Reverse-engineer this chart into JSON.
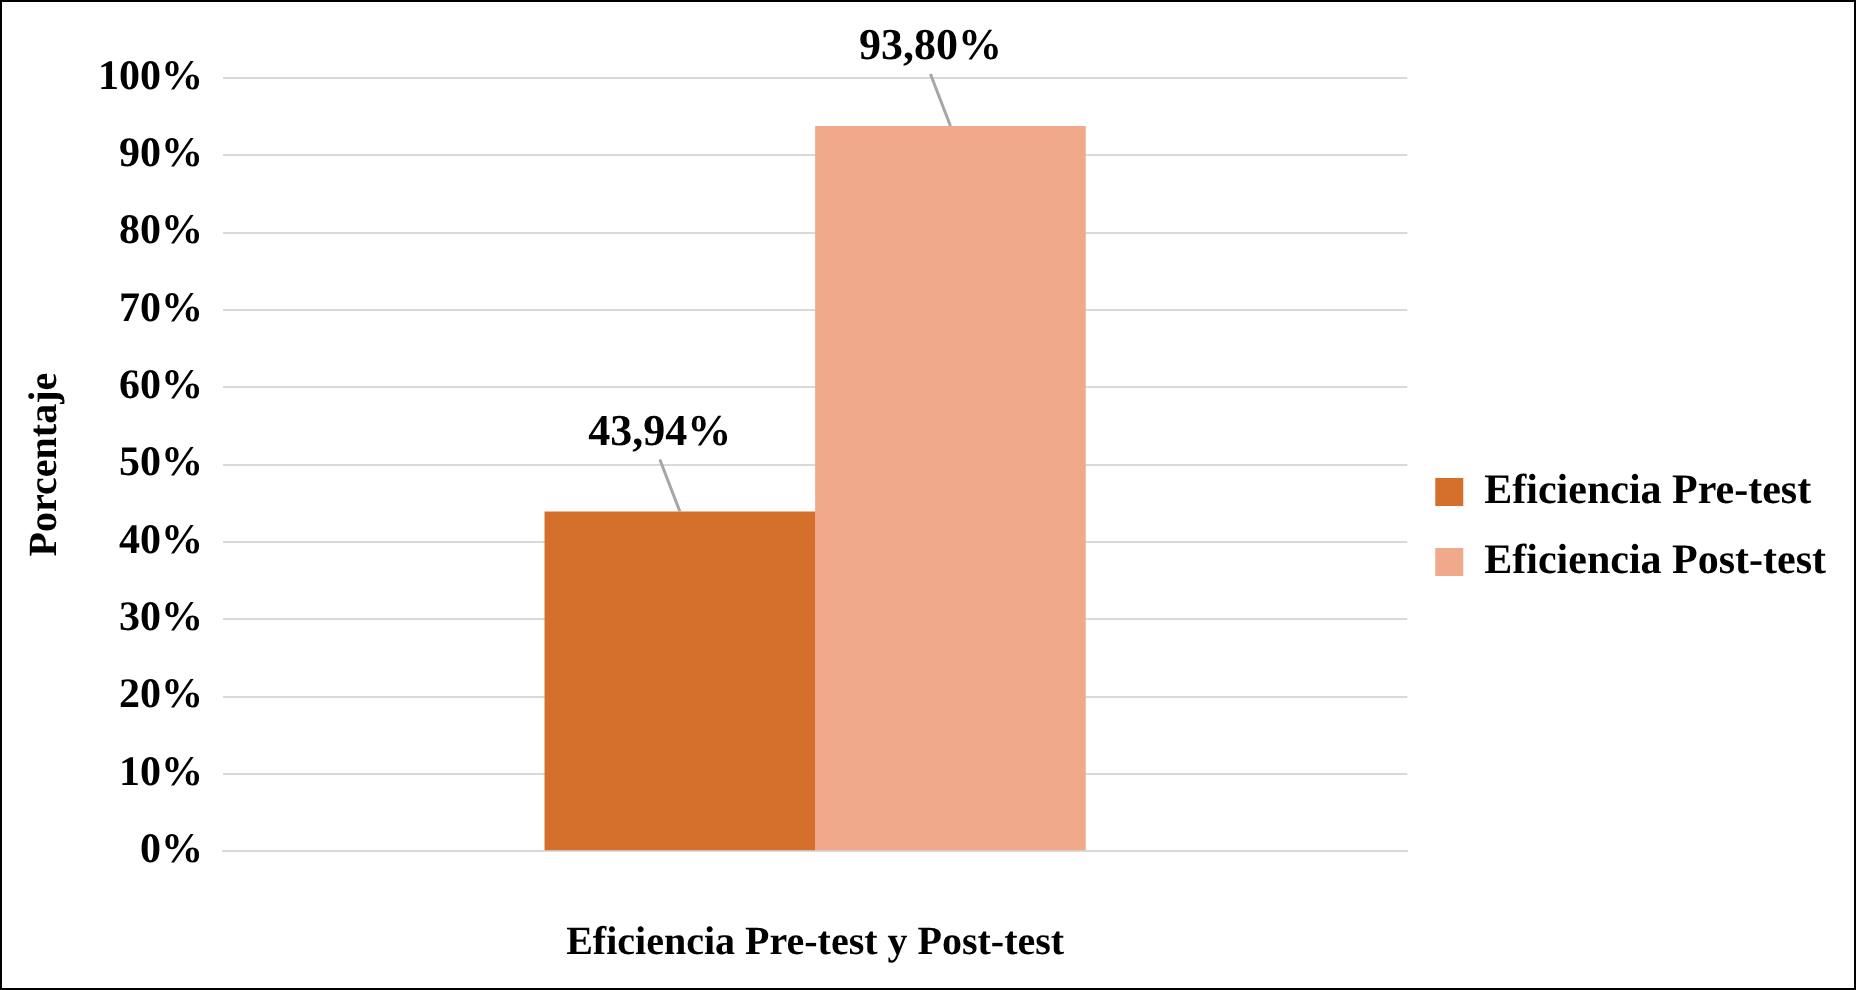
{
  "chart_data": {
    "type": "bar",
    "xlabel": "Eficiencia Pre-test y Post-test",
    "ylabel": "Porcentaje",
    "categories": [
      null
    ],
    "series": [
      {
        "name": "Eficiencia Pre-test",
        "color": "#d4702c",
        "values": [
          43.94
        ],
        "value_labels": [
          "43,94%"
        ]
      },
      {
        "name": "Eficiencia Post-test",
        "color": "#f0a98a",
        "values": [
          93.8
        ],
        "value_labels": [
          "93,80%"
        ]
      }
    ],
    "ylim": [
      0,
      100
    ],
    "yticks": [
      {
        "value": 0,
        "label": "0%"
      },
      {
        "value": 10,
        "label": "10%"
      },
      {
        "value": 20,
        "label": "20%"
      },
      {
        "value": 30,
        "label": "30%"
      },
      {
        "value": 40,
        "label": "40%"
      },
      {
        "value": 50,
        "label": "50%"
      },
      {
        "value": 60,
        "label": "60%"
      },
      {
        "value": 70,
        "label": "70%"
      },
      {
        "value": 80,
        "label": "80%"
      },
      {
        "value": 90,
        "label": "90%"
      },
      {
        "value": 100,
        "label": "100%"
      }
    ],
    "grid": "y",
    "legend": "right"
  }
}
